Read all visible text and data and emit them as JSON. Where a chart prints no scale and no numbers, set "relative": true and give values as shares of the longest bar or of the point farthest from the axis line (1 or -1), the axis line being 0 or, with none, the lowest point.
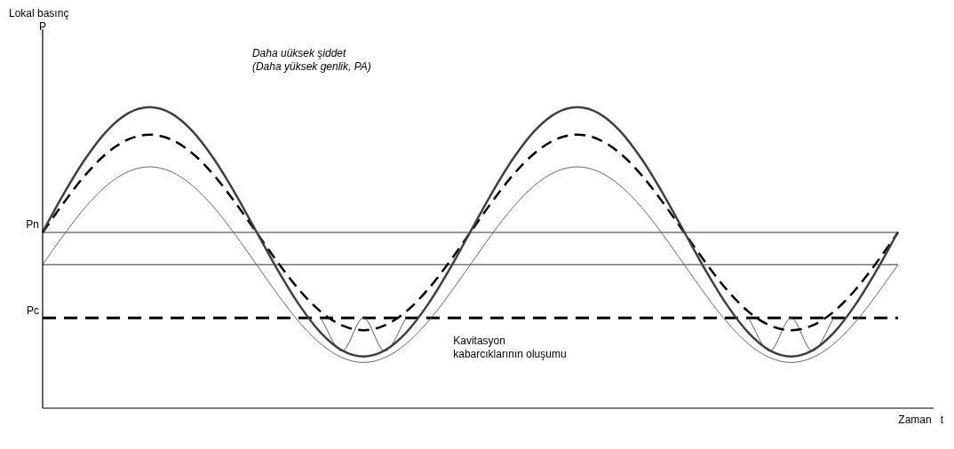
{
  "chart_data": {
    "type": "line",
    "relative": true,
    "xlabel": "Zaman   t",
    "categories": [
      null,
      null,
      null,
      null,
      null,
      null,
      null,
      null,
      null,
      null,
      null,
      null,
      null,
      null,
      null,
      null,
      null,
      null,
      null,
      null,
      null,
      null,
      null,
      null,
      null,
      null,
      null,
      null,
      null,
      null,
      null,
      null,
      null,
      null,
      null,
      null,
      null,
      null,
      null,
      null,
      null
    ],
    "series": [
      {
        "color": "#404040",
        "line_style": "solid",
        "values": [
          0.586,
          0.714,
          0.829,
          0.921,
          0.98,
          1.0,
          0.98,
          0.921,
          0.829,
          0.714,
          0.586,
          0.458,
          0.343,
          0.251,
          0.192,
          0.172,
          0.192,
          0.251,
          0.343,
          0.458,
          0.586,
          0.714,
          0.829,
          0.921,
          0.98,
          1.0,
          0.98,
          0.921,
          0.829,
          0.714,
          0.586,
          0.458,
          0.343,
          0.251,
          0.192,
          0.172,
          0.192,
          0.251,
          0.343,
          0.458,
          0.586
        ]
      },
      {
        "color": "#000000",
        "line_style": "dashed",
        "values": [
          0.584,
          0.684,
          0.775,
          0.847,
          0.893,
          0.909,
          0.893,
          0.847,
          0.775,
          0.684,
          0.584,
          0.484,
          0.393,
          0.321,
          0.275,
          0.259,
          0.275,
          0.321,
          0.393,
          0.484,
          0.584,
          0.684,
          0.775,
          0.847,
          0.893,
          0.909,
          0.893,
          0.847,
          0.775,
          0.684,
          0.584,
          0.484,
          0.393,
          0.321,
          0.275,
          0.259,
          0.275,
          0.321,
          0.393,
          0.484,
          0.584
        ]
      },
      {
        "color": "#666666",
        "line_style": "solid",
        "values": [
          0.477,
          0.577,
          0.668,
          0.74,
          0.786,
          0.802,
          0.786,
          0.74,
          0.668,
          0.577,
          0.477,
          0.377,
          0.286,
          0.214,
          0.168,
          0.152,
          0.168,
          0.214,
          0.286,
          0.377,
          0.477,
          0.577,
          0.668,
          0.74,
          0.786,
          0.802,
          0.786,
          0.74,
          0.668,
          0.577,
          0.477,
          0.377,
          0.286,
          0.214,
          0.168,
          0.152,
          0.168,
          0.214,
          0.286,
          0.377,
          0.477
        ]
      },
      {
        "color": "#555555",
        "line_style": "solid",
        "values": [
          null,
          null,
          null,
          null,
          null,
          null,
          null,
          null,
          null,
          null,
          null,
          null,
          null,
          0.3,
          0.19,
          0.3,
          0.19,
          0.3,
          null,
          null,
          null,
          null,
          null,
          null,
          null,
          null,
          null,
          null,
          null,
          null,
          null,
          null,
          null,
          0.3,
          0.19,
          0.3,
          0.19,
          0.3,
          null,
          null,
          null
        ]
      }
    ],
    "ref_lines": [
      {
        "axis": "y",
        "value": 0.584,
        "label": "Pn",
        "color": "#333333",
        "line_style": "solid"
      },
      {
        "axis": "y",
        "value": 0.477,
        "label": null,
        "color": "#333333",
        "line_style": "solid"
      },
      {
        "axis": "y",
        "value": 0.3,
        "label": "Pc",
        "color": "#000000",
        "line_style": "dashed"
      }
    ],
    "annotations": [
      "Daha uüksek şiddet\n(Daha yüksek genlik, PA)",
      "Kavitasyon\nkabarcıklarının oluşumu",
      "Lokal basınç\nP"
    ],
    "marker": "none",
    "legend": false,
    "grid": false
  }
}
